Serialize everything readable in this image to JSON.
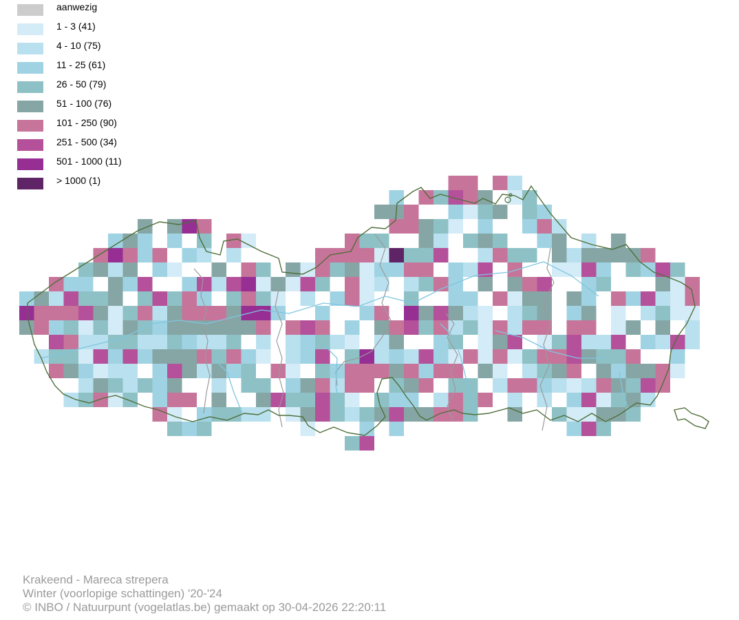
{
  "legend": {
    "items": [
      {
        "label": "aanwezig",
        "color": "#cccccc"
      },
      {
        "label": "1 - 3 (41)",
        "color": "#d4ecf7"
      },
      {
        "label": "4 - 10 (75)",
        "color": "#b9e0ee"
      },
      {
        "label": "11 - 25 (61)",
        "color": "#9fd3e3"
      },
      {
        "label": "26 - 50 (79)",
        "color": "#8ec1c5"
      },
      {
        "label": "51 - 100 (76)",
        "color": "#86a6a5"
      },
      {
        "label": "101 - 250 (90)",
        "color": "#c7749a"
      },
      {
        "label": "251 - 500 (34)",
        "color": "#b5509a"
      },
      {
        "label": "501 - 1000 (11)",
        "color": "#962e93"
      },
      {
        "label": "> 1000 (1)",
        "color": "#5f2466"
      }
    ]
  },
  "map": {
    "border_color": "#4f6e3a",
    "province_color": "#9a9a9a",
    "river_color": "#7ec6e0"
  },
  "footer": {
    "species": "Krakeend - Mareca strepera",
    "season": "Winter (voorlopige schattingen) '20-'24",
    "credit": "© INBO / Natuurpunt (vogelatlas.be) gemaakt op 30-04-2026 22:20:11"
  }
}
